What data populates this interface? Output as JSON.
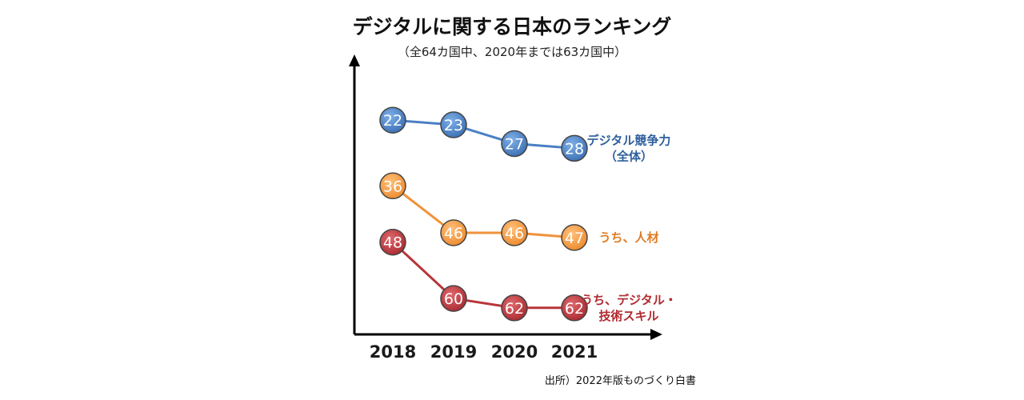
{
  "chart_data": {
    "type": "line",
    "title": "デジタルに関する日本のランキング",
    "subtitle": "（全64カ国中、2020年までは63カ国中）",
    "categories": [
      "2018",
      "2019",
      "2020",
      "2021"
    ],
    "y_inverted": true,
    "ylim": [
      16,
      68
    ],
    "grid": false,
    "series": [
      {
        "name_lines": [
          "デジタル競争力",
          "（全体）"
        ],
        "values": [
          22,
          23,
          27,
          28
        ],
        "color": "#4a80c4",
        "label_color": "#2e5f9e"
      },
      {
        "name_lines": [
          "うち、人材"
        ],
        "values": [
          36,
          46,
          46,
          47
        ],
        "color": "#f0923a",
        "label_color": "#e07a20"
      },
      {
        "name_lines": [
          "うち、デジタル・",
          "技術スキル"
        ],
        "values": [
          48,
          60,
          62,
          62
        ],
        "color": "#b8353a",
        "label_color": "#b02a30"
      }
    ],
    "source": "出所）2022年版ものづくり白書"
  }
}
